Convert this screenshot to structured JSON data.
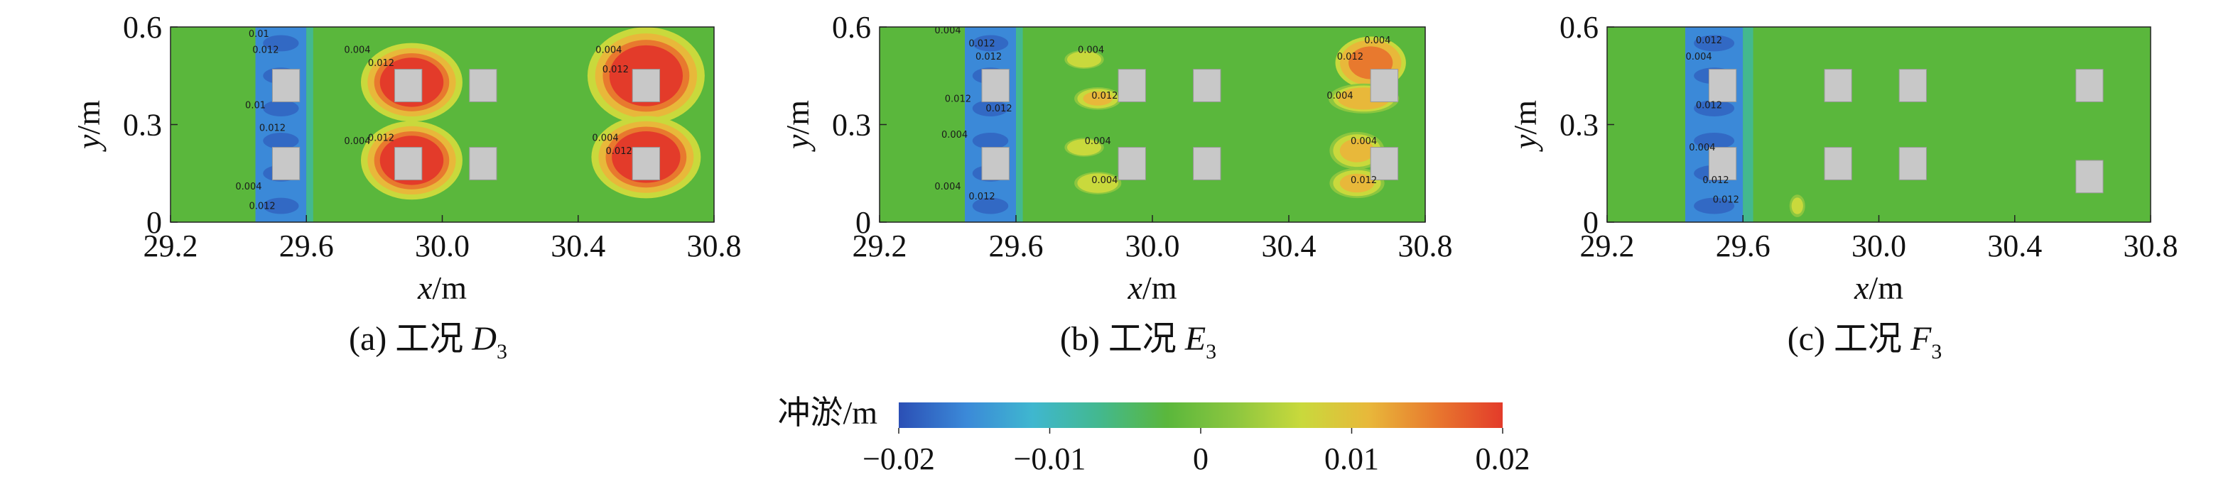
{
  "chart_data": [
    {
      "type": "heatmap",
      "id": "a",
      "caption_prefix": "(a) 工况 ",
      "caption_var": "D",
      "caption_sub": "3",
      "xlabel_var": "x",
      "xlabel_unit": "/m",
      "ylabel_var": "y",
      "ylabel_unit": "/m",
      "xlim": [
        29.2,
        30.8
      ],
      "ylim": [
        0,
        0.6
      ],
      "xticks": [
        29.2,
        29.6,
        30.0,
        30.4,
        30.8
      ],
      "xtick_labels": [
        "29.2",
        "29.6",
        "30.0",
        "30.4",
        "30.8"
      ],
      "yticks": [
        0,
        0.3,
        0.6
      ],
      "ytick_labels": [
        "0",
        "0.3",
        "0.6"
      ],
      "piers": [
        {
          "x": 29.54,
          "y": 0.42,
          "w": 0.08,
          "h": 0.1
        },
        {
          "x": 29.54,
          "y": 0.18,
          "w": 0.08,
          "h": 0.1
        },
        {
          "x": 29.9,
          "y": 0.42,
          "w": 0.08,
          "h": 0.1
        },
        {
          "x": 29.9,
          "y": 0.18,
          "w": 0.08,
          "h": 0.1
        },
        {
          "x": 30.12,
          "y": 0.42,
          "w": 0.08,
          "h": 0.1
        },
        {
          "x": 30.12,
          "y": 0.18,
          "w": 0.08,
          "h": 0.1
        },
        {
          "x": 30.6,
          "y": 0.42,
          "w": 0.08,
          "h": 0.1
        },
        {
          "x": 30.6,
          "y": 0.18,
          "w": 0.08,
          "h": 0.1
        }
      ],
      "scour_bands": [
        {
          "x1": 29.45,
          "x2": 29.6,
          "y1": 0.0,
          "y2": 0.6,
          "value": -0.017
        },
        {
          "x1": 29.6,
          "x2": 29.62,
          "y1": 0.0,
          "y2": 0.6,
          "value": -0.006
        }
      ],
      "deposits": [
        {
          "x": 29.91,
          "y": 0.43,
          "rx": 0.13,
          "ry": 0.105,
          "value": 0.02
        },
        {
          "x": 29.91,
          "y": 0.19,
          "rx": 0.13,
          "ry": 0.105,
          "value": 0.02
        },
        {
          "x": 30.6,
          "y": 0.45,
          "rx": 0.15,
          "ry": 0.13,
          "value": 0.02
        },
        {
          "x": 30.6,
          "y": 0.2,
          "rx": 0.14,
          "ry": 0.11,
          "value": 0.02
        }
      ],
      "contour_labels": [
        {
          "x": 29.46,
          "y": 0.57,
          "text": "0.01"
        },
        {
          "x": 29.48,
          "y": 0.52,
          "text": "0.012"
        },
        {
          "x": 29.45,
          "y": 0.35,
          "text": "0.01"
        },
        {
          "x": 29.5,
          "y": 0.28,
          "text": "0.012"
        },
        {
          "x": 29.43,
          "y": 0.1,
          "text": "0.004"
        },
        {
          "x": 29.47,
          "y": 0.04,
          "text": "0.012"
        },
        {
          "x": 29.75,
          "y": 0.52,
          "text": "0.004"
        },
        {
          "x": 29.82,
          "y": 0.48,
          "text": "0.012"
        },
        {
          "x": 29.75,
          "y": 0.24,
          "text": "0.004"
        },
        {
          "x": 29.82,
          "y": 0.25,
          "text": "0.012"
        },
        {
          "x": 30.49,
          "y": 0.52,
          "text": "0.004"
        },
        {
          "x": 30.51,
          "y": 0.46,
          "text": "0.012"
        },
        {
          "x": 30.48,
          "y": 0.25,
          "text": "0.004"
        },
        {
          "x": 30.52,
          "y": 0.21,
          "text": "0.012"
        }
      ]
    },
    {
      "type": "heatmap",
      "id": "b",
      "caption_prefix": "(b) 工况 ",
      "caption_var": "E",
      "caption_sub": "3",
      "xlabel_var": "x",
      "xlabel_unit": "/m",
      "ylabel_var": "y",
      "ylabel_unit": "/m",
      "xlim": [
        29.2,
        30.8
      ],
      "ylim": [
        0,
        0.6
      ],
      "xticks": [
        29.2,
        29.6,
        30.0,
        30.4,
        30.8
      ],
      "xtick_labels": [
        "29.2",
        "29.6",
        "30.0",
        "30.4",
        "30.8"
      ],
      "yticks": [
        0,
        0.3,
        0.6
      ],
      "ytick_labels": [
        "0",
        "0.3",
        "0.6"
      ],
      "piers": [
        {
          "x": 29.54,
          "y": 0.42,
          "w": 0.08,
          "h": 0.1
        },
        {
          "x": 29.54,
          "y": 0.18,
          "w": 0.08,
          "h": 0.1
        },
        {
          "x": 29.94,
          "y": 0.42,
          "w": 0.08,
          "h": 0.1
        },
        {
          "x": 29.94,
          "y": 0.18,
          "w": 0.08,
          "h": 0.1
        },
        {
          "x": 30.16,
          "y": 0.42,
          "w": 0.08,
          "h": 0.1
        },
        {
          "x": 30.16,
          "y": 0.18,
          "w": 0.08,
          "h": 0.1
        },
        {
          "x": 30.68,
          "y": 0.42,
          "w": 0.08,
          "h": 0.1
        },
        {
          "x": 30.68,
          "y": 0.18,
          "w": 0.08,
          "h": 0.1
        }
      ],
      "scour_bands": [
        {
          "x1": 29.45,
          "x2": 29.6,
          "y1": 0.0,
          "y2": 0.6,
          "value": -0.017
        },
        {
          "x1": 29.6,
          "x2": 29.62,
          "y1": 0.0,
          "y2": 0.6,
          "value": -0.006
        }
      ],
      "deposits": [
        {
          "x": 29.8,
          "y": 0.5,
          "rx": 0.05,
          "ry": 0.025,
          "value": 0.008
        },
        {
          "x": 29.84,
          "y": 0.38,
          "rx": 0.06,
          "ry": 0.03,
          "value": 0.01
        },
        {
          "x": 29.8,
          "y": 0.23,
          "rx": 0.05,
          "ry": 0.025,
          "value": 0.008
        },
        {
          "x": 29.84,
          "y": 0.12,
          "rx": 0.06,
          "ry": 0.03,
          "value": 0.008
        },
        {
          "x": 30.64,
          "y": 0.49,
          "rx": 0.09,
          "ry": 0.07,
          "value": 0.015
        },
        {
          "x": 30.62,
          "y": 0.38,
          "rx": 0.09,
          "ry": 0.04,
          "value": 0.012
        },
        {
          "x": 30.6,
          "y": 0.22,
          "rx": 0.07,
          "ry": 0.05,
          "value": 0.009
        },
        {
          "x": 30.6,
          "y": 0.12,
          "rx": 0.07,
          "ry": 0.04,
          "value": 0.01
        }
      ],
      "contour_labels": [
        {
          "x": 29.4,
          "y": 0.58,
          "text": "0.004"
        },
        {
          "x": 29.5,
          "y": 0.54,
          "text": "0.012"
        },
        {
          "x": 29.52,
          "y": 0.5,
          "text": "0.012"
        },
        {
          "x": 29.43,
          "y": 0.37,
          "text": "0.012"
        },
        {
          "x": 29.55,
          "y": 0.34,
          "text": "0.012"
        },
        {
          "x": 29.42,
          "y": 0.26,
          "text": "0.004"
        },
        {
          "x": 29.4,
          "y": 0.1,
          "text": "0.004"
        },
        {
          "x": 29.5,
          "y": 0.07,
          "text": "0.012"
        },
        {
          "x": 29.82,
          "y": 0.52,
          "text": "0.004"
        },
        {
          "x": 29.86,
          "y": 0.38,
          "text": "0.012"
        },
        {
          "x": 29.84,
          "y": 0.24,
          "text": "0.004"
        },
        {
          "x": 29.86,
          "y": 0.12,
          "text": "0.004"
        },
        {
          "x": 30.66,
          "y": 0.55,
          "text": "0.004"
        },
        {
          "x": 30.58,
          "y": 0.5,
          "text": "0.012"
        },
        {
          "x": 30.55,
          "y": 0.38,
          "text": "0.004"
        },
        {
          "x": 30.62,
          "y": 0.24,
          "text": "0.004"
        },
        {
          "x": 30.62,
          "y": 0.12,
          "text": "0.012"
        }
      ]
    },
    {
      "type": "heatmap",
      "id": "c",
      "caption_prefix": "(c) 工况 ",
      "caption_var": "F",
      "caption_sub": "3",
      "xlabel_var": "x",
      "xlabel_unit": "/m",
      "ylabel_var": "y",
      "ylabel_unit": "/m",
      "xlim": [
        29.2,
        30.8
      ],
      "ylim": [
        0,
        0.6
      ],
      "xticks": [
        29.2,
        29.6,
        30.0,
        30.4,
        30.8
      ],
      "xtick_labels": [
        "29.2",
        "29.6",
        "30.0",
        "30.4",
        "30.8"
      ],
      "yticks": [
        0,
        0.3,
        0.6
      ],
      "ytick_labels": [
        "0",
        "0.3",
        "0.6"
      ],
      "piers": [
        {
          "x": 29.54,
          "y": 0.42,
          "w": 0.08,
          "h": 0.1
        },
        {
          "x": 29.54,
          "y": 0.18,
          "w": 0.08,
          "h": 0.1
        },
        {
          "x": 29.88,
          "y": 0.42,
          "w": 0.08,
          "h": 0.1
        },
        {
          "x": 29.88,
          "y": 0.18,
          "w": 0.08,
          "h": 0.1
        },
        {
          "x": 30.1,
          "y": 0.42,
          "w": 0.08,
          "h": 0.1
        },
        {
          "x": 30.1,
          "y": 0.18,
          "w": 0.08,
          "h": 0.1
        },
        {
          "x": 30.62,
          "y": 0.42,
          "w": 0.08,
          "h": 0.1
        },
        {
          "x": 30.62,
          "y": 0.14,
          "w": 0.08,
          "h": 0.1
        }
      ],
      "scour_bands": [
        {
          "x1": 29.43,
          "x2": 29.6,
          "y1": 0.0,
          "y2": 0.6,
          "value": -0.017
        },
        {
          "x1": 29.6,
          "x2": 29.63,
          "y1": 0.0,
          "y2": 0.6,
          "value": -0.006
        }
      ],
      "deposits": [
        {
          "x": 29.76,
          "y": 0.05,
          "rx": 0.02,
          "ry": 0.03,
          "value": 0.007
        }
      ],
      "contour_labels": [
        {
          "x": 29.5,
          "y": 0.55,
          "text": "0.012"
        },
        {
          "x": 29.47,
          "y": 0.5,
          "text": "0.004"
        },
        {
          "x": 29.5,
          "y": 0.35,
          "text": "0.012"
        },
        {
          "x": 29.48,
          "y": 0.22,
          "text": "0.004"
        },
        {
          "x": 29.52,
          "y": 0.12,
          "text": "0.012"
        },
        {
          "x": 29.55,
          "y": 0.06,
          "text": "0.012"
        }
      ]
    }
  ],
  "colorbar": {
    "label": "冲淤/m",
    "min": -0.02,
    "max": 0.02,
    "ticks": [
      -0.02,
      -0.01,
      0,
      0.01,
      0.02
    ],
    "tick_labels": [
      "−0.02",
      "−0.01",
      "0",
      "0.01",
      "0.02"
    ],
    "stops": [
      "#2b4fb5",
      "#3b89d8",
      "#3fb7cf",
      "#43b88e",
      "#5ab73c",
      "#8cc63f",
      "#c9d93c",
      "#e8b83a",
      "#e8792e",
      "#e33b2a"
    ]
  },
  "colors": {
    "background_field": "#5ab73c",
    "pier": "#c8c8c8",
    "pier_stroke": "#9a9a9a"
  }
}
